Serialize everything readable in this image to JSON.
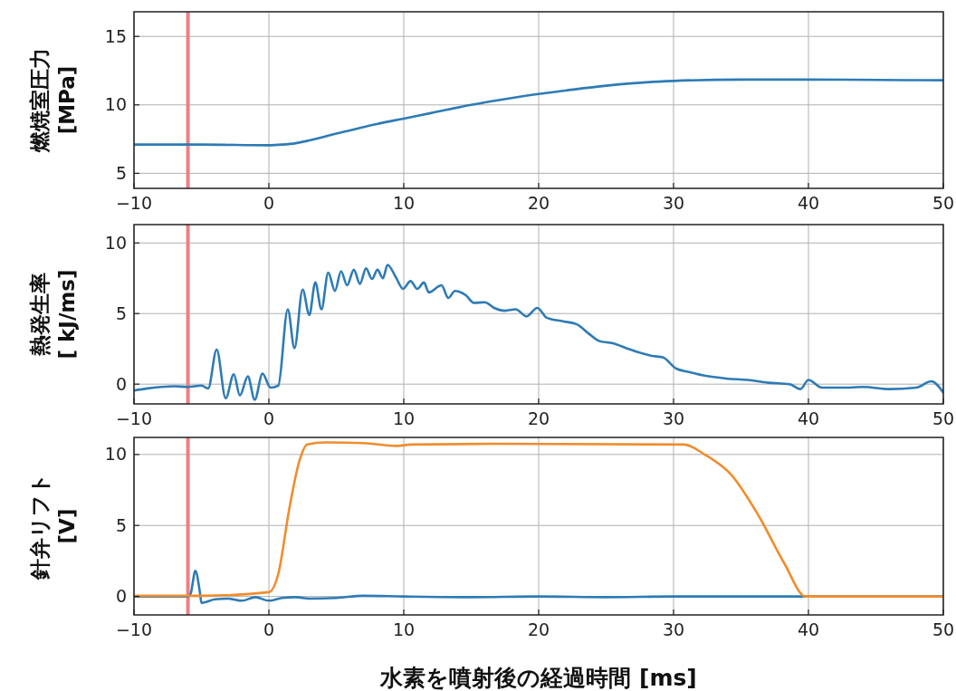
{
  "chart_data": [
    {
      "type": "line",
      "ylabel": "燃焼室圧力\n[MPa]",
      "xlim": [
        -10,
        50
      ],
      "xticks": [
        -10,
        0,
        10,
        20,
        30,
        40,
        50
      ],
      "ylim": [
        3.9,
        16.8
      ],
      "yticks": [
        5,
        10,
        15
      ],
      "grid": true,
      "line_style": "solid",
      "marker": "none",
      "ref_lines": [
        {
          "axis": "x",
          "value": -6,
          "color": "#ef7f83"
        }
      ],
      "series": [
        {
          "color": "#2e7bb5",
          "x": [
            -10,
            -5,
            0,
            1,
            2,
            3,
            5,
            8,
            10,
            12,
            15,
            18,
            20,
            22,
            25,
            28,
            30,
            35,
            40,
            45,
            50
          ],
          "values": [
            7.1,
            7.1,
            7.05,
            7.1,
            7.2,
            7.4,
            7.9,
            8.6,
            9.0,
            9.4,
            10.0,
            10.5,
            10.8,
            11.05,
            11.4,
            11.65,
            11.75,
            11.85,
            11.85,
            11.82,
            11.8
          ]
        }
      ]
    },
    {
      "type": "line",
      "ylabel": "熱発生率\n[ kJ/ms]",
      "xlim": [
        -10,
        50
      ],
      "xticks": [
        -10,
        0,
        10,
        20,
        30,
        40,
        50
      ],
      "ylim": [
        -1.4,
        11.3
      ],
      "yticks": [
        0,
        5,
        10
      ],
      "grid": true,
      "line_style": "solid",
      "marker": "none",
      "ref_lines": [
        {
          "axis": "x",
          "value": -6,
          "color": "#ef7f83"
        }
      ],
      "series": [
        {
          "color": "#2e7bb5",
          "x": [
            -10,
            -9,
            -8,
            -7,
            -6,
            -5,
            -4.5,
            -3.87,
            -3.2,
            -2.6,
            -2.15,
            -1.56,
            -1.05,
            -0.47,
            0.12,
            0.7,
            1.4,
            1.9,
            2.5,
            3.0,
            3.44,
            3.9,
            4.4,
            4.9,
            5.35,
            5.8,
            6.3,
            6.75,
            7.2,
            7.65,
            8.05,
            8.45,
            8.8,
            9.4,
            9.95,
            10.5,
            11.0,
            11.5,
            11.85,
            12.8,
            13.3,
            13.8,
            14.6,
            15.2,
            16.0,
            16.7,
            17.5,
            18.3,
            19.1,
            19.9,
            20.6,
            21.8,
            22.8,
            23.75,
            24.5,
            25.5,
            26.5,
            27.6,
            28.4,
            29.2,
            30.2,
            31.2,
            32.3,
            33.9,
            35.5,
            37.0,
            38.6,
            39.4,
            40.0,
            41.0,
            42.5,
            44.1,
            46.0,
            48.0,
            49.1,
            50
          ],
          "values": [
            -0.45,
            -0.3,
            -0.2,
            -0.15,
            -0.2,
            -0.1,
            -0.3,
            2.45,
            -1.0,
            0.7,
            -0.8,
            0.55,
            -1.1,
            0.75,
            -0.25,
            -0.1,
            5.3,
            2.55,
            6.7,
            4.9,
            7.2,
            5.3,
            7.9,
            6.6,
            8.0,
            7.0,
            8.1,
            7.1,
            8.2,
            7.45,
            8.1,
            7.5,
            8.45,
            7.6,
            6.75,
            7.3,
            6.75,
            7.2,
            6.5,
            7.0,
            6.1,
            6.6,
            6.3,
            5.75,
            5.8,
            5.4,
            5.2,
            5.3,
            4.8,
            5.4,
            4.7,
            4.45,
            4.25,
            3.55,
            3.05,
            2.9,
            2.55,
            2.2,
            2.0,
            1.9,
            1.1,
            0.85,
            0.6,
            0.4,
            0.3,
            0.1,
            0.0,
            -0.35,
            0.3,
            -0.25,
            -0.25,
            -0.2,
            -0.35,
            -0.25,
            0.2,
            -0.6
          ]
        }
      ]
    },
    {
      "type": "line",
      "ylabel": "針弁リフト\n[V]",
      "xlabel": "水素を噴射後の経過時間 [ms]",
      "xlim": [
        -10,
        50
      ],
      "xticks": [
        -10,
        0,
        10,
        20,
        30,
        40,
        50
      ],
      "ylim": [
        -1.3,
        11.2
      ],
      "yticks": [
        0,
        5,
        10
      ],
      "grid": true,
      "line_style": "solid",
      "marker": "none",
      "ref_lines": [
        {
          "axis": "x",
          "value": -6,
          "color": "#ef7f83"
        }
      ],
      "series": [
        {
          "color": "#2e7bb5",
          "x": [
            -10,
            -6,
            -5.8,
            -5.45,
            -5.1,
            -5.0,
            -4,
            -3,
            -2,
            -1,
            0,
            1,
            2,
            3,
            5,
            7,
            10,
            15,
            20,
            25,
            30,
            35,
            40,
            45,
            50
          ],
          "values": [
            0.0,
            0.0,
            0.2,
            1.8,
            0.2,
            -0.45,
            -0.2,
            -0.15,
            -0.3,
            -0.05,
            -0.3,
            -0.1,
            -0.05,
            -0.15,
            -0.1,
            0.05,
            0.0,
            -0.05,
            0.0,
            -0.05,
            0.0,
            0.0,
            0.0,
            0.0,
            0.0
          ]
        },
        {
          "color": "#ef8d2e",
          "x": [
            -10,
            -5,
            0,
            0.7,
            1.5,
            2.25,
            2.85,
            4.2,
            7,
            9.5,
            10.5,
            16.7,
            30.8,
            32.3,
            34.3,
            36.3,
            38.2,
            39.8,
            45,
            50
          ],
          "values": [
            0.05,
            0.05,
            0.3,
            1.6,
            6.1,
            9.5,
            10.7,
            10.85,
            10.8,
            10.6,
            10.7,
            10.75,
            10.7,
            10.0,
            8.55,
            5.7,
            2.35,
            0.0,
            0.0,
            0.0
          ]
        }
      ]
    }
  ]
}
